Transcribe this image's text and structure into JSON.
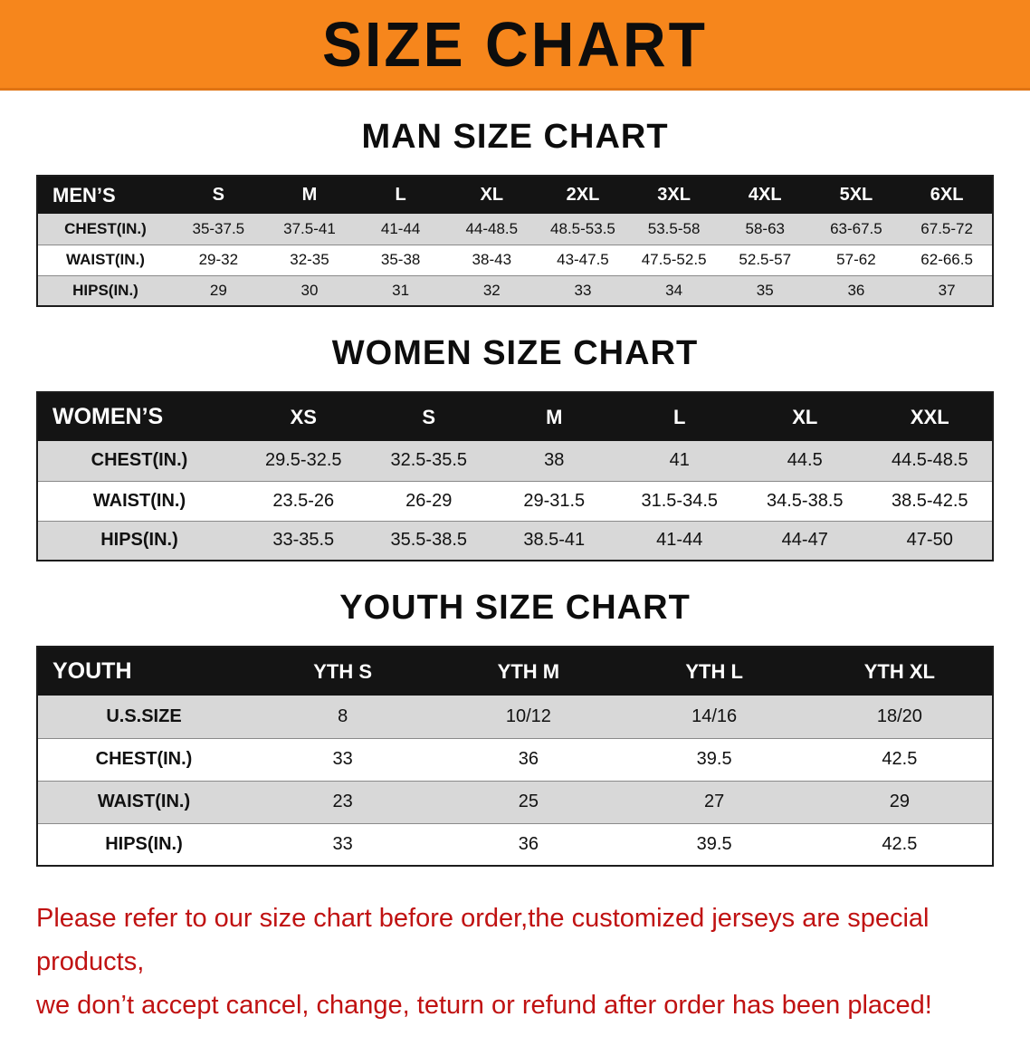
{
  "banner": {
    "title": "SIZE CHART"
  },
  "sections": [
    {
      "heading": "MAN SIZE CHART",
      "table": {
        "corner_label": "MEN’S",
        "columns": [
          "S",
          "M",
          "L",
          "XL",
          "2XL",
          "3XL",
          "4XL",
          "5XL",
          "6XL"
        ],
        "rows": [
          {
            "label": "CHEST(IN.)",
            "values": [
              "35-37.5",
              "37.5-41",
              "41-44",
              "44-48.5",
              "48.5-53.5",
              "53.5-58",
              "58-63",
              "63-67.5",
              "67.5-72"
            ]
          },
          {
            "label": "WAIST(IN.)",
            "values": [
              "29-32",
              "32-35",
              "35-38",
              "38-43",
              "43-47.5",
              "47.5-52.5",
              "52.5-57",
              "57-62",
              "62-66.5"
            ]
          },
          {
            "label": "HIPS(IN.)",
            "values": [
              "29",
              "30",
              "31",
              "32",
              "33",
              "34",
              "35",
              "36",
              "37"
            ]
          }
        ]
      }
    },
    {
      "heading": "WOMEN SIZE CHART",
      "table": {
        "corner_label": "WOMEN’S",
        "columns": [
          "XS",
          "S",
          "M",
          "L",
          "XL",
          "XXL"
        ],
        "rows": [
          {
            "label": "CHEST(IN.)",
            "values": [
              "29.5-32.5",
              "32.5-35.5",
              "38",
              "41",
              "44.5",
              "44.5-48.5"
            ]
          },
          {
            "label": "WAIST(IN.)",
            "values": [
              "23.5-26",
              "26-29",
              "29-31.5",
              "31.5-34.5",
              "34.5-38.5",
              "38.5-42.5"
            ]
          },
          {
            "label": "HIPS(IN.)",
            "values": [
              "33-35.5",
              "35.5-38.5",
              "38.5-41",
              "41-44",
              "44-47",
              "47-50"
            ]
          }
        ]
      }
    },
    {
      "heading": "YOUTH SIZE CHART",
      "table": {
        "corner_label": "YOUTH",
        "columns": [
          "YTH S",
          "YTH M",
          "YTH L",
          "YTH XL"
        ],
        "rows": [
          {
            "label": "U.S.SIZE",
            "values": [
              "8",
              "10/12",
              "14/16",
              "18/20"
            ]
          },
          {
            "label": "CHEST(IN.)",
            "values": [
              "33",
              "36",
              "39.5",
              "42.5"
            ]
          },
          {
            "label": "WAIST(IN.)",
            "values": [
              "23",
              "25",
              "27",
              "29"
            ]
          },
          {
            "label": "HIPS(IN.)",
            "values": [
              "33",
              "36",
              "39.5",
              "42.5"
            ]
          }
        ]
      }
    }
  ],
  "disclaimer": {
    "line1": "Please refer to our size chart before order,the customized jerseys are special products,",
    "line2": "we don’t accept cancel, change, teturn or refund after order has been placed!"
  },
  "colors": {
    "banner_bg": "#f6861c",
    "row_stripe": "#d8d8d8",
    "header_bg": "#141414",
    "disclaimer_text": "#c01212"
  }
}
